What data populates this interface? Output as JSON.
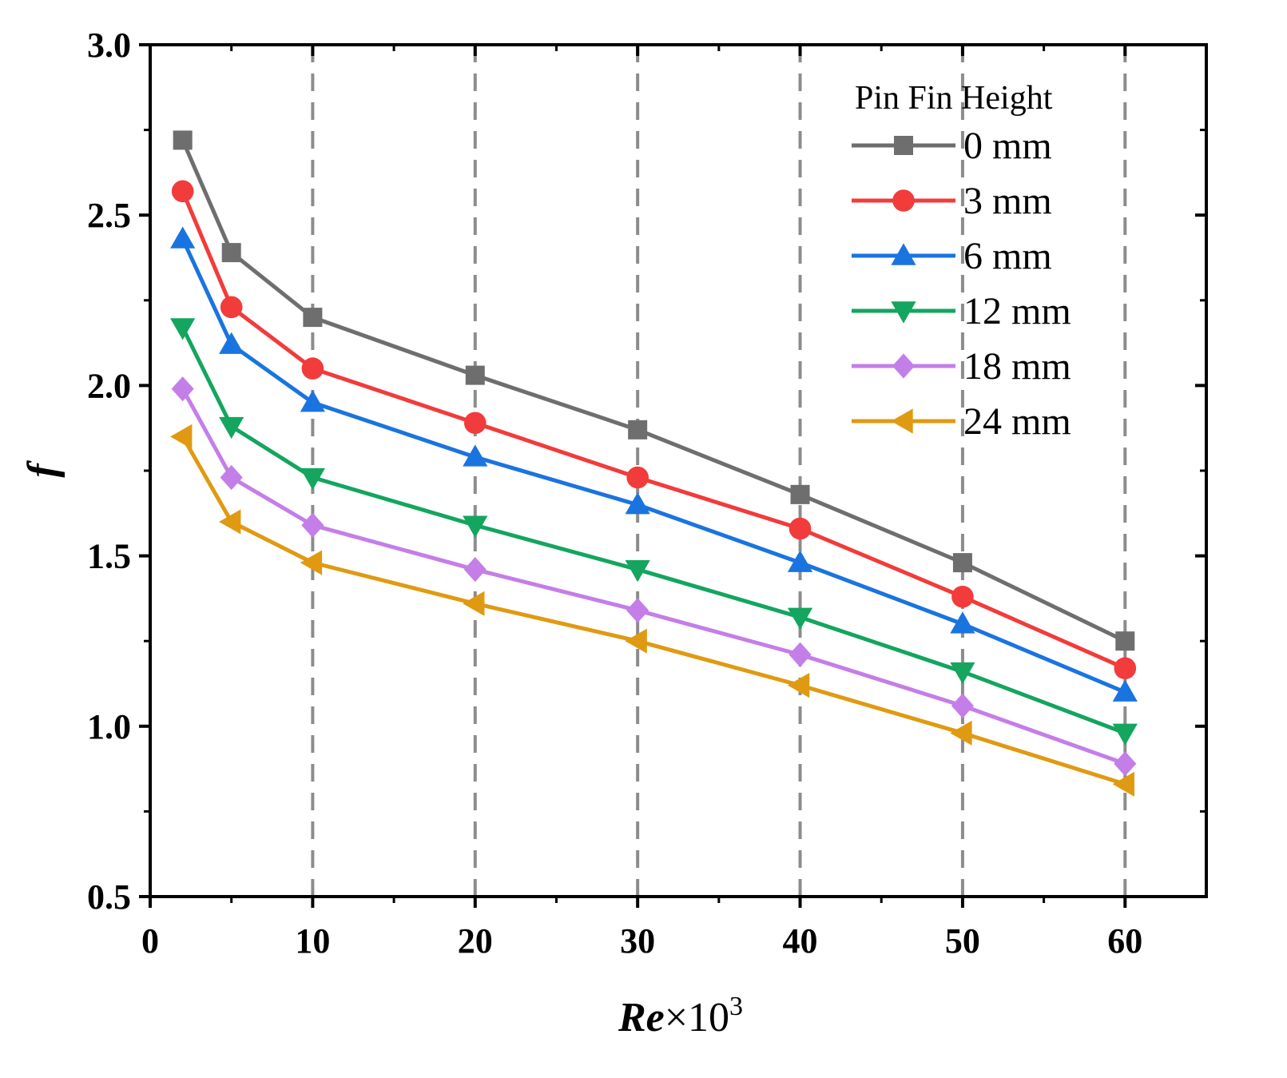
{
  "chart_data": {
    "type": "line",
    "title": "",
    "xlabel": {
      "italic": "Re",
      "rest": "×10",
      "sup": "3"
    },
    "ylabel": "f",
    "xlim": [
      0,
      65
    ],
    "ylim": [
      0.5,
      3.0
    ],
    "xticks": [
      0,
      10,
      20,
      30,
      40,
      50,
      60
    ],
    "xtick_labels": [
      "0",
      "10",
      "20",
      "30",
      "40",
      "50",
      "60"
    ],
    "yticks": [
      0.5,
      1.0,
      1.5,
      2.0,
      2.5,
      3.0
    ],
    "ytick_labels": [
      "0.5",
      "1.0",
      "1.5",
      "2.0",
      "2.5",
      "3.0"
    ],
    "vertical_dashed_gridlines_at": [
      10,
      20,
      30,
      40,
      50,
      60
    ],
    "legend": {
      "title": "Pin Fin Height",
      "position": "top-right"
    },
    "x": [
      2,
      5,
      10,
      20,
      30,
      40,
      50,
      60
    ],
    "series": [
      {
        "name": "0 mm",
        "color": "#6e6e6e",
        "marker": "square",
        "values": [
          2.72,
          2.39,
          2.2,
          2.03,
          1.87,
          1.68,
          1.48,
          1.25
        ]
      },
      {
        "name": "3 mm",
        "color": "#f23b3b",
        "marker": "circle",
        "values": [
          2.57,
          2.23,
          2.05,
          1.89,
          1.73,
          1.58,
          1.38,
          1.17
        ]
      },
      {
        "name": "6 mm",
        "color": "#1a74e0",
        "marker": "triangle-up",
        "values": [
          2.43,
          2.12,
          1.95,
          1.79,
          1.65,
          1.48,
          1.3,
          1.1
        ]
      },
      {
        "name": "12 mm",
        "color": "#14a55e",
        "marker": "triangle-down",
        "values": [
          2.17,
          1.88,
          1.73,
          1.59,
          1.46,
          1.32,
          1.16,
          0.98
        ]
      },
      {
        "name": "18 mm",
        "color": "#c47ee8",
        "marker": "diamond",
        "values": [
          1.99,
          1.73,
          1.59,
          1.46,
          1.34,
          1.21,
          1.06,
          0.89
        ]
      },
      {
        "name": "24 mm",
        "color": "#e09a12",
        "marker": "triangle-left",
        "values": [
          1.85,
          1.6,
          1.48,
          1.36,
          1.25,
          1.12,
          0.98,
          0.83
        ]
      }
    ]
  }
}
